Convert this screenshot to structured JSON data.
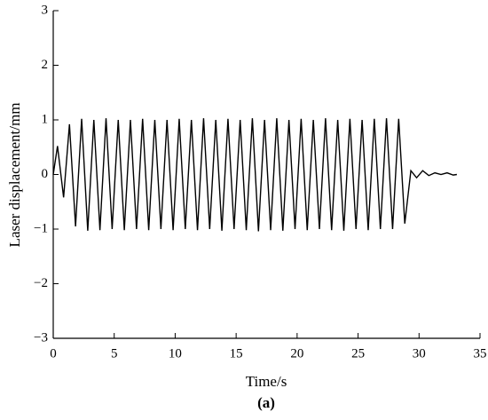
{
  "chart_data": {
    "type": "line",
    "x_label": "Time/s",
    "y_label": "Laser displacement/mm",
    "caption": "(a)",
    "x": [
      0,
      0.35,
      0.85,
      1.33,
      1.83,
      2.33,
      2.83,
      3.33,
      3.83,
      4.33,
      4.83,
      5.33,
      5.83,
      6.33,
      6.83,
      7.33,
      7.83,
      8.33,
      8.83,
      9.33,
      9.83,
      10.33,
      10.83,
      11.33,
      11.83,
      12.33,
      12.83,
      13.33,
      13.83,
      14.33,
      14.83,
      15.33,
      15.83,
      16.33,
      16.83,
      17.33,
      17.83,
      18.33,
      18.83,
      19.33,
      19.83,
      20.33,
      20.83,
      21.33,
      21.83,
      22.33,
      22.83,
      23.33,
      23.83,
      24.33,
      24.83,
      25.33,
      25.83,
      26.33,
      26.83,
      27.33,
      27.83,
      28.33,
      28.83,
      29.33,
      29.8,
      30.3,
      30.8,
      31.3,
      31.8,
      32.3,
      32.8,
      33.1
    ],
    "series": [
      {
        "color": "#000000",
        "values": [
          0,
          0.52,
          -0.42,
          0.92,
          -0.95,
          1.02,
          -1.03,
          1.0,
          -1.02,
          1.03,
          -1.0,
          1.0,
          -1.02,
          1.0,
          -1.0,
          1.02,
          -1.02,
          1.0,
          -1.0,
          1.0,
          -1.02,
          1.02,
          -1.0,
          1.0,
          -1.02,
          1.03,
          -1.0,
          1.0,
          -1.03,
          1.02,
          -1.0,
          1.0,
          -1.02,
          1.03,
          -1.04,
          1.0,
          -1.02,
          1.03,
          -1.03,
          1.0,
          -1.0,
          1.02,
          -1.02,
          1.0,
          -1.0,
          1.03,
          -1.02,
          1.0,
          -1.03,
          1.02,
          -1.0,
          1.0,
          -1.02,
          1.02,
          -1.0,
          1.03,
          -1.0,
          1.02,
          -0.9,
          0.07,
          -0.06,
          0.07,
          -0.02,
          0.03,
          0.0,
          0.03,
          -0.01,
          0.0
        ]
      }
    ],
    "xlim": [
      0,
      35
    ],
    "xticks": [
      0,
      5,
      10,
      15,
      20,
      25,
      30,
      35
    ],
    "ylim": [
      -3,
      3
    ],
    "yticks": [
      {
        "value": -3,
        "label": "−3"
      },
      {
        "value": -2,
        "label": "−2"
      },
      {
        "value": -1,
        "label": "−1"
      },
      0,
      1,
      2,
      3
    ]
  }
}
